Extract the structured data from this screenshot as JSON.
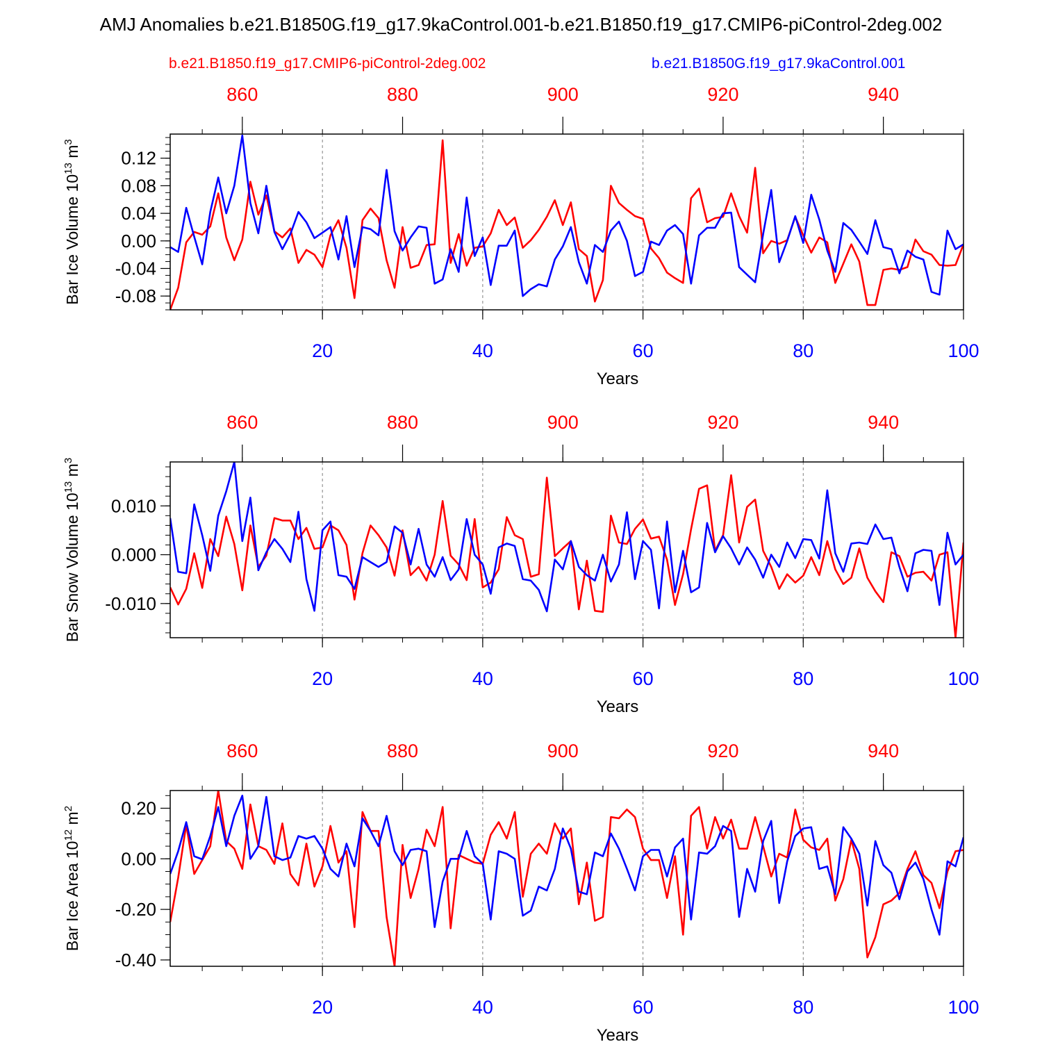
{
  "title": "AMJ Anomalies b.e21.B1850G.f19_g17.9kaControl.001-b.e21.B1850.f19_g17.CMIP6-piControl-2deg.002",
  "legend": {
    "red": "b.e21.B1850.f19_g17.CMIP6-piControl-2deg.002",
    "blue": "b.e21.B1850G.f19_g17.9kaControl.001"
  },
  "colors": {
    "red": "#ff0000",
    "blue": "#0000ff",
    "axis": "#000000",
    "grid": "#7f7f7f"
  },
  "chart_data": [
    {
      "type": "line",
      "ylabel": "Bar Ice Volume 10",
      "ylabel_exp": "13",
      "ylabel_unit": " m",
      "ylabel_unit_exp": "3",
      "xlabel": "Years",
      "xlim": [
        1,
        100
      ],
      "ylim": [
        -0.1,
        0.155
      ],
      "yticks": [
        -0.08,
        -0.04,
        0.0,
        0.04,
        0.08,
        0.12
      ],
      "ytick_labels": [
        "-0.08",
        "-0.04",
        "0.00",
        "0.04",
        "0.08",
        "0.12"
      ],
      "y_minor_step": 0.01,
      "xticks_bottom": [
        20,
        40,
        60,
        80,
        100
      ],
      "xtick_labels_bottom": [
        "20",
        "40",
        "60",
        "80",
        "100"
      ],
      "xticks_top": [
        10,
        30,
        50,
        70,
        90
      ],
      "xtick_labels_top": [
        "860",
        "880",
        "900",
        "920",
        "940"
      ],
      "gridlines_x": [
        20,
        40,
        60,
        80
      ],
      "series": [
        {
          "name": "b.e21.B1850G.f19_g17.9kaControl.001",
          "color": "blue",
          "values": [
            -0.009,
            -0.016,
            0.048,
            0.006,
            -0.034,
            0.042,
            0.092,
            0.04,
            0.08,
            0.153,
            0.055,
            0.011,
            0.08,
            0.013,
            -0.012,
            0.01,
            0.042,
            0.027,
            0.004,
            0.012,
            0.02,
            -0.027,
            0.036,
            -0.038,
            0.02,
            0.017,
            0.008,
            0.103,
            0.014,
            -0.014,
            0.005,
            0.021,
            0.019,
            -0.062,
            -0.056,
            -0.012,
            -0.045,
            0.063,
            -0.022,
            0.005,
            -0.064,
            -0.007,
            -0.007,
            0.015,
            -0.08,
            -0.07,
            -0.063,
            -0.066,
            -0.027,
            -0.008,
            0.02,
            -0.031,
            -0.062,
            -0.006,
            -0.016,
            0.015,
            0.028,
            0.0,
            -0.051,
            -0.045,
            -0.001,
            -0.006,
            0.015,
            0.023,
            0.01,
            -0.062,
            0.008,
            0.019,
            0.019,
            0.04,
            0.041,
            -0.038,
            -0.049,
            -0.06,
            0.01,
            0.074,
            -0.031,
            0.0,
            0.036,
            -0.003,
            0.067,
            0.031,
            -0.014,
            -0.045,
            0.026,
            0.016,
            -0.001,
            -0.019,
            0.03,
            -0.009,
            -0.012,
            -0.047,
            -0.014,
            -0.023,
            -0.027,
            -0.074,
            -0.078,
            0.015,
            -0.012,
            -0.005
          ]
        },
        {
          "name": "b.e21.B1850.f19_g17.CMIP6-piControl-2deg.002",
          "color": "red",
          "values": [
            -0.1,
            -0.068,
            -0.002,
            0.013,
            0.009,
            0.021,
            0.069,
            0.005,
            -0.028,
            0.002,
            0.086,
            0.038,
            0.066,
            0.014,
            0.005,
            0.018,
            -0.032,
            -0.013,
            -0.02,
            -0.038,
            0.008,
            0.03,
            -0.01,
            -0.083,
            0.03,
            0.047,
            0.033,
            -0.028,
            -0.068,
            0.02,
            -0.039,
            -0.035,
            -0.006,
            -0.005,
            0.146,
            -0.032,
            0.01,
            -0.036,
            -0.01,
            -0.008,
            0.011,
            0.045,
            0.023,
            0.034,
            -0.01,
            0.001,
            0.016,
            0.035,
            0.059,
            0.023,
            0.056,
            -0.012,
            -0.022,
            -0.088,
            -0.057,
            0.08,
            0.055,
            0.045,
            0.036,
            0.032,
            -0.011,
            -0.025,
            -0.046,
            -0.054,
            -0.061,
            0.062,
            0.076,
            0.027,
            0.033,
            0.035,
            0.069,
            0.036,
            0.012,
            0.106,
            -0.018,
            0.0,
            -0.004,
            0.001,
            0.035,
            0.008,
            -0.017,
            0.005,
            -0.002,
            -0.061,
            -0.033,
            -0.005,
            -0.03,
            -0.093,
            -0.093,
            -0.042,
            -0.04,
            -0.042,
            -0.038,
            0.002,
            -0.015,
            -0.02,
            -0.035,
            -0.036,
            -0.035,
            -0.005
          ]
        }
      ]
    },
    {
      "type": "line",
      "ylabel": "Bar Snow Volume 10",
      "ylabel_exp": "13",
      "ylabel_unit": " m",
      "ylabel_unit_exp": "3",
      "xlabel": "Years",
      "xlim": [
        1,
        100
      ],
      "ylim": [
        -0.017,
        0.019
      ],
      "yticks": [
        -0.01,
        0.0,
        0.01
      ],
      "ytick_labels": [
        "-0.010",
        "0.000",
        "0.010"
      ],
      "y_minor_step": 0.002,
      "xticks_bottom": [
        20,
        40,
        60,
        80,
        100
      ],
      "xtick_labels_bottom": [
        "20",
        "40",
        "60",
        "80",
        "100"
      ],
      "xticks_top": [
        10,
        30,
        50,
        70,
        90
      ],
      "xtick_labels_top": [
        "860",
        "880",
        "900",
        "920",
        "940"
      ],
      "gridlines_x": [
        20,
        40,
        60,
        80
      ],
      "series": [
        {
          "name": "b.e21.B1850G.f19_g17.9kaControl.001",
          "color": "blue",
          "values": [
            0.0075,
            -0.0035,
            -0.0038,
            0.0103,
            0.004,
            -0.0033,
            0.008,
            0.013,
            0.019,
            0.0028,
            0.0117,
            -0.0032,
            0.0005,
            0.0032,
            0.0012,
            -0.0015,
            0.0088,
            -0.005,
            -0.0115,
            0.005,
            0.0068,
            -0.0042,
            -0.0045,
            -0.007,
            -0.0005,
            -0.0015,
            -0.0025,
            -0.0015,
            0.0058,
            0.0045,
            -0.002,
            0.0053,
            -0.002,
            -0.0045,
            -0.0005,
            -0.0052,
            -0.003,
            0.0073,
            0.0,
            -0.002,
            -0.008,
            0.0015,
            0.0023,
            0.0018,
            -0.005,
            -0.0053,
            -0.0072,
            -0.0116,
            -0.001,
            -0.003,
            0.0028,
            -0.0025,
            -0.0042,
            -0.0053,
            0.0,
            -0.0055,
            -0.002,
            0.0087,
            -0.005,
            0.0028,
            0.001,
            -0.011,
            0.0068,
            -0.0077,
            0.0008,
            -0.0077,
            -0.0067,
            0.0065,
            0.0005,
            0.0038,
            0.0013,
            -0.002,
            0.0015,
            -0.001,
            -0.0047,
            0.0,
            -0.0025,
            0.0025,
            -0.0007,
            0.0032,
            0.003,
            -0.0008,
            0.0132,
            0.0003,
            -0.0035,
            0.0023,
            0.0025,
            0.0022,
            0.0062,
            0.0032,
            0.0035,
            -0.0025,
            -0.0075,
            0.0003,
            0.001,
            0.0008,
            -0.0103,
            0.0045,
            -0.002,
            0.0
          ]
        },
        {
          "name": "b.e21.B1850.f19_g17.CMIP6-piControl-2deg.002",
          "color": "red",
          "values": [
            -0.0067,
            -0.0102,
            -0.007,
            0.0003,
            -0.0068,
            0.0032,
            -0.0003,
            0.0078,
            0.0022,
            -0.0073,
            0.006,
            -0.0025,
            -0.0002,
            0.0075,
            0.007,
            0.007,
            0.0032,
            0.0055,
            0.0012,
            0.0015,
            0.006,
            0.005,
            0.002,
            -0.0092,
            0.0003,
            0.006,
            0.004,
            0.0015,
            -0.0043,
            0.005,
            -0.0042,
            -0.0025,
            -0.0053,
            0.0,
            0.011,
            -0.0002,
            -0.002,
            -0.0052,
            0.0073,
            -0.0067,
            -0.0057,
            -0.003,
            0.0077,
            0.004,
            0.0032,
            -0.0045,
            -0.004,
            0.0158,
            -0.0003,
            0.0013,
            0.0028,
            -0.0112,
            -0.0012,
            -0.0115,
            -0.0117,
            0.008,
            0.0025,
            0.0022,
            0.0053,
            0.0072,
            0.0033,
            0.0037,
            -0.001,
            -0.0103,
            -0.004,
            0.0052,
            0.0135,
            0.0142,
            0.0008,
            0.004,
            0.0163,
            0.0025,
            0.0098,
            0.0113,
            0.0008,
            -0.0025,
            -0.007,
            -0.004,
            -0.0057,
            -0.0043,
            -0.0005,
            -0.0042,
            0.0028,
            -0.003,
            -0.006,
            -0.0047,
            0.0013,
            -0.0047,
            -0.0075,
            -0.0097,
            0.0005,
            -0.0003,
            -0.0045,
            -0.0037,
            -0.0035,
            -0.0053,
            0.0,
            0.0005,
            -0.017,
            0.0025
          ]
        }
      ]
    },
    {
      "type": "line",
      "ylabel": "Bar Ice Area 10",
      "ylabel_exp": "12",
      "ylabel_unit": " m",
      "ylabel_unit_exp": "2",
      "xlabel": "Years",
      "xlim": [
        1,
        100
      ],
      "ylim": [
        -0.425,
        0.27
      ],
      "yticks": [
        -0.4,
        -0.2,
        0.0,
        0.2
      ],
      "ytick_labels": [
        "-0.40",
        "-0.20",
        "0.00",
        "0.20"
      ],
      "y_minor_step": 0.05,
      "xticks_bottom": [
        20,
        40,
        60,
        80,
        100
      ],
      "xtick_labels_bottom": [
        "20",
        "40",
        "60",
        "80",
        "100"
      ],
      "xticks_top": [
        10,
        30,
        50,
        70,
        90
      ],
      "xtick_labels_top": [
        "860",
        "880",
        "900",
        "920",
        "940"
      ],
      "gridlines_x": [
        20,
        40,
        60,
        80
      ],
      "series": [
        {
          "name": "b.e21.B1850G.f19_g17.9kaControl.001",
          "color": "blue",
          "values": [
            -0.06,
            0.03,
            0.145,
            0.01,
            -0.002,
            0.09,
            0.205,
            0.05,
            0.17,
            0.25,
            0.0,
            0.05,
            0.245,
            0.01,
            -0.005,
            0.005,
            0.09,
            0.08,
            0.09,
            0.04,
            -0.04,
            -0.07,
            0.06,
            -0.03,
            0.16,
            0.11,
            0.05,
            0.17,
            0.03,
            -0.025,
            0.035,
            0.04,
            0.03,
            -0.27,
            -0.09,
            0.0,
            0.0,
            0.11,
            0.01,
            -0.02,
            -0.24,
            0.03,
            0.02,
            0.0,
            -0.225,
            -0.205,
            -0.11,
            -0.125,
            -0.04,
            0.12,
            0.04,
            -0.13,
            -0.14,
            0.025,
            0.01,
            0.1,
            0.04,
            -0.04,
            -0.125,
            0.01,
            0.035,
            0.035,
            -0.07,
            0.045,
            0.08,
            -0.24,
            0.025,
            0.02,
            0.05,
            0.13,
            0.11,
            -0.23,
            -0.04,
            -0.13,
            0.07,
            0.15,
            -0.175,
            -0.01,
            0.09,
            0.12,
            0.125,
            -0.04,
            -0.03,
            -0.14,
            0.125,
            0.08,
            0.02,
            -0.185,
            0.07,
            -0.025,
            -0.055,
            -0.16,
            -0.05,
            -0.015,
            -0.08,
            -0.2,
            -0.3,
            -0.01,
            -0.03,
            0.085
          ]
        },
        {
          "name": "b.e21.B1850.f19_g17.CMIP6-piControl-2deg.002",
          "color": "red",
          "values": [
            -0.25,
            -0.075,
            0.135,
            -0.06,
            -0.005,
            0.05,
            0.27,
            0.07,
            0.04,
            -0.04,
            0.215,
            0.05,
            0.035,
            -0.02,
            0.14,
            -0.06,
            -0.105,
            0.06,
            -0.11,
            -0.03,
            0.13,
            -0.015,
            0.03,
            -0.27,
            0.185,
            0.11,
            0.11,
            -0.23,
            -0.425,
            0.055,
            -0.155,
            -0.04,
            0.115,
            0.05,
            0.205,
            -0.275,
            0.015,
            0.0,
            -0.015,
            -0.02,
            0.095,
            0.145,
            0.08,
            0.185,
            -0.15,
            0.02,
            0.06,
            0.02,
            0.14,
            0.08,
            0.12,
            -0.18,
            -0.015,
            -0.245,
            -0.23,
            0.165,
            0.16,
            0.195,
            0.165,
            0.04,
            -0.005,
            -0.005,
            -0.155,
            0.01,
            -0.3,
            0.17,
            0.205,
            0.04,
            0.165,
            0.08,
            0.155,
            0.04,
            0.04,
            0.165,
            0.05,
            -0.07,
            0.02,
            0.005,
            0.195,
            0.075,
            0.045,
            0.035,
            0.08,
            -0.165,
            -0.08,
            0.075,
            -0.04,
            -0.39,
            -0.31,
            -0.18,
            -0.165,
            -0.135,
            -0.04,
            0.03,
            -0.065,
            -0.095,
            -0.195,
            -0.05,
            0.03,
            0.035
          ]
        }
      ]
    }
  ]
}
